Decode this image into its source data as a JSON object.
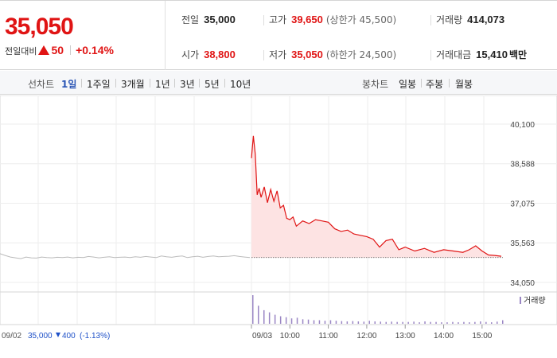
{
  "summary": {
    "price": "35,050",
    "change_label": "전일대비",
    "change_abs": "50",
    "change_pct": "+0.14%",
    "stats": [
      {
        "label": "전일",
        "value": "35,000",
        "red": false,
        "note": ""
      },
      {
        "label": "고가",
        "value": "39,650",
        "red": true,
        "note": "(상한가 45,500)"
      },
      {
        "label": "거래량",
        "value": "414,073",
        "red": false,
        "note": ""
      },
      {
        "label": "시가",
        "value": "38,800",
        "red": true,
        "note": ""
      },
      {
        "label": "저가",
        "value": "35,050",
        "red": true,
        "note": "(하한가 24,500)"
      },
      {
        "label": "거래대금",
        "value": "15,410",
        "red": false,
        "unit": "백만"
      }
    ]
  },
  "toolbar": {
    "line_label": "선차트",
    "periods": [
      "1일",
      "1주일",
      "3개월",
      "1년",
      "3년",
      "5년",
      "10년"
    ],
    "active_period": "1일",
    "candle_label": "봉차트",
    "candles": [
      "일봉",
      "주봉",
      "월봉"
    ]
  },
  "colors": {
    "up": "#e01414",
    "down": "#1e50c8",
    "prev_line": "#bbbbbb",
    "fill": "#fde3e3",
    "volume": "#9a86c4"
  },
  "chart_data": {
    "type": "line",
    "y_ticks": [
      "40,100",
      "38,588",
      "37,075",
      "35,563",
      "34,050"
    ],
    "ylim": [
      34050,
      40100
    ],
    "prev_day": {
      "date": "09/02",
      "close": "35,000",
      "change": "400",
      "change_pct": "(-1.13%)",
      "values": [
        35150,
        35080,
        35020,
        34990,
        34960,
        35020,
        34990,
        34980,
        35020,
        35000,
        34990,
        35010,
        35000,
        35020,
        34990,
        35010,
        35000,
        35040,
        35020,
        34990,
        35010,
        35030,
        35000,
        35010,
        35020,
        35000,
        35030,
        35010,
        35040,
        35020,
        35000,
        35060,
        35030,
        35010,
        35040,
        35060,
        35000,
        35030,
        35050,
        35010,
        35040,
        35060,
        35030,
        35040,
        35050,
        35070,
        35040,
        35020,
        35000
      ]
    },
    "today": {
      "date": "09/03",
      "times": [
        "09:00",
        "09:03",
        "09:06",
        "09:09",
        "09:12",
        "09:15",
        "09:20",
        "09:25",
        "09:30",
        "09:35",
        "09:40",
        "09:45",
        "09:50",
        "09:55",
        "10:00",
        "10:05",
        "10:10",
        "10:20",
        "10:30",
        "10:40",
        "10:50",
        "11:00",
        "11:10",
        "11:20",
        "11:30",
        "11:40",
        "11:50",
        "12:00",
        "12:10",
        "12:20",
        "12:30",
        "12:40",
        "12:50",
        "13:00",
        "13:15",
        "13:30",
        "13:45",
        "14:00",
        "14:15",
        "14:30",
        "14:40",
        "14:50",
        "15:00",
        "15:10",
        "15:20",
        "15:30"
      ],
      "values": [
        38800,
        39650,
        38950,
        37400,
        37650,
        37300,
        37700,
        37100,
        37600,
        37150,
        37550,
        36900,
        37000,
        36500,
        36450,
        36550,
        36200,
        36400,
        36300,
        36450,
        36400,
        36350,
        36100,
        36000,
        36050,
        35900,
        35850,
        35800,
        35700,
        35400,
        35650,
        35700,
        35300,
        35400,
        35250,
        35350,
        35200,
        35300,
        35250,
        35200,
        35300,
        35450,
        35250,
        35100,
        35080,
        35050
      ]
    },
    "x_ticks": [
      "09/02",
      "09/03",
      "10:00",
      "11:00",
      "12:00",
      "13:00",
      "14:00",
      "15:00"
    ],
    "volume_label": "거래량",
    "volume_today": [
      95,
      60,
      45,
      38,
      30,
      25,
      22,
      18,
      20,
      15,
      14,
      12,
      12,
      10,
      12,
      10,
      9,
      8,
      9,
      8,
      7,
      10,
      8,
      7,
      6,
      7,
      6,
      6,
      6,
      7,
      5,
      8,
      6,
      6,
      5,
      5,
      6,
      5,
      6,
      5,
      6,
      8,
      6,
      5,
      7,
      12
    ]
  }
}
